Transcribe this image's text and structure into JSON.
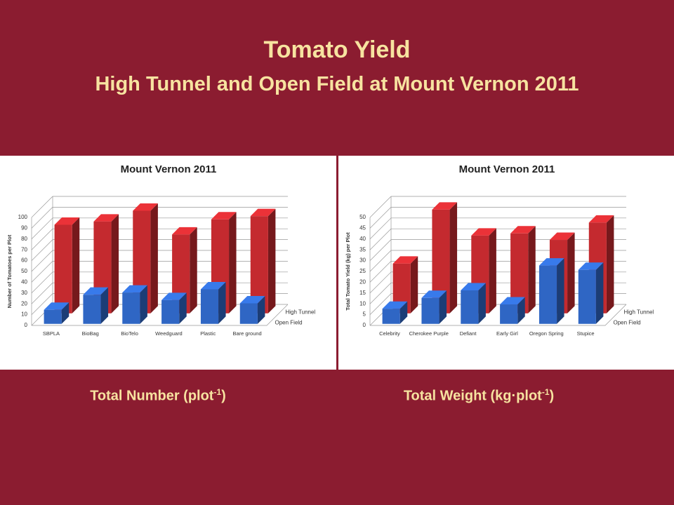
{
  "slide": {
    "title": "Tomato Yield",
    "subtitle": "High Tunnel and Open Field at Mount Vernon 2011",
    "captions": [
      {
        "text": "Total Number (plot",
        "sup": "-1",
        "end": ")"
      },
      {
        "text": "Total Weight (kg·plot",
        "sup": "-1",
        "end": ")"
      }
    ]
  },
  "chart_data": [
    {
      "type": "bar3d",
      "title": "Mount Vernon 2011",
      "y_label": "Number of Tomatoes per Plot",
      "categories": [
        "SBPLA",
        "BioBag",
        "BioTelo",
        "Weedguard",
        "Plastic",
        "Bare ground"
      ],
      "series": [
        {
          "name": "High Tunnel",
          "color": "#c42a2f",
          "values": [
            82,
            85,
            95,
            73,
            87,
            90
          ]
        },
        {
          "name": "Open Field",
          "color": "#2f66c4",
          "values": [
            13,
            27,
            29,
            22,
            32,
            19
          ]
        }
      ],
      "ylim": [
        0,
        100
      ],
      "yticks": [
        0,
        10,
        20,
        30,
        40,
        50,
        60,
        70,
        80,
        90,
        100
      ],
      "grid": true
    },
    {
      "type": "bar3d",
      "title": "Mount Vernon 2011",
      "y_label": "Total Tomato Yield (kg) per Plot",
      "categories": [
        "Celebrity",
        "Cherokee Purple",
        "Defiant",
        "Early Girl",
        "Oregon Spring",
        "Stupice"
      ],
      "series": [
        {
          "name": "High Tunnel",
          "color": "#c42a2f",
          "values": [
            23,
            48,
            36,
            37,
            34,
            42
          ]
        },
        {
          "name": "Open Field",
          "color": "#2f66c4",
          "values": [
            7,
            12,
            15.5,
            9,
            27,
            25
          ]
        }
      ],
      "ylim": [
        0,
        50
      ],
      "yticks": [
        0,
        5,
        10,
        15,
        20,
        25,
        30,
        35,
        40,
        45,
        50
      ],
      "grid": true
    }
  ]
}
